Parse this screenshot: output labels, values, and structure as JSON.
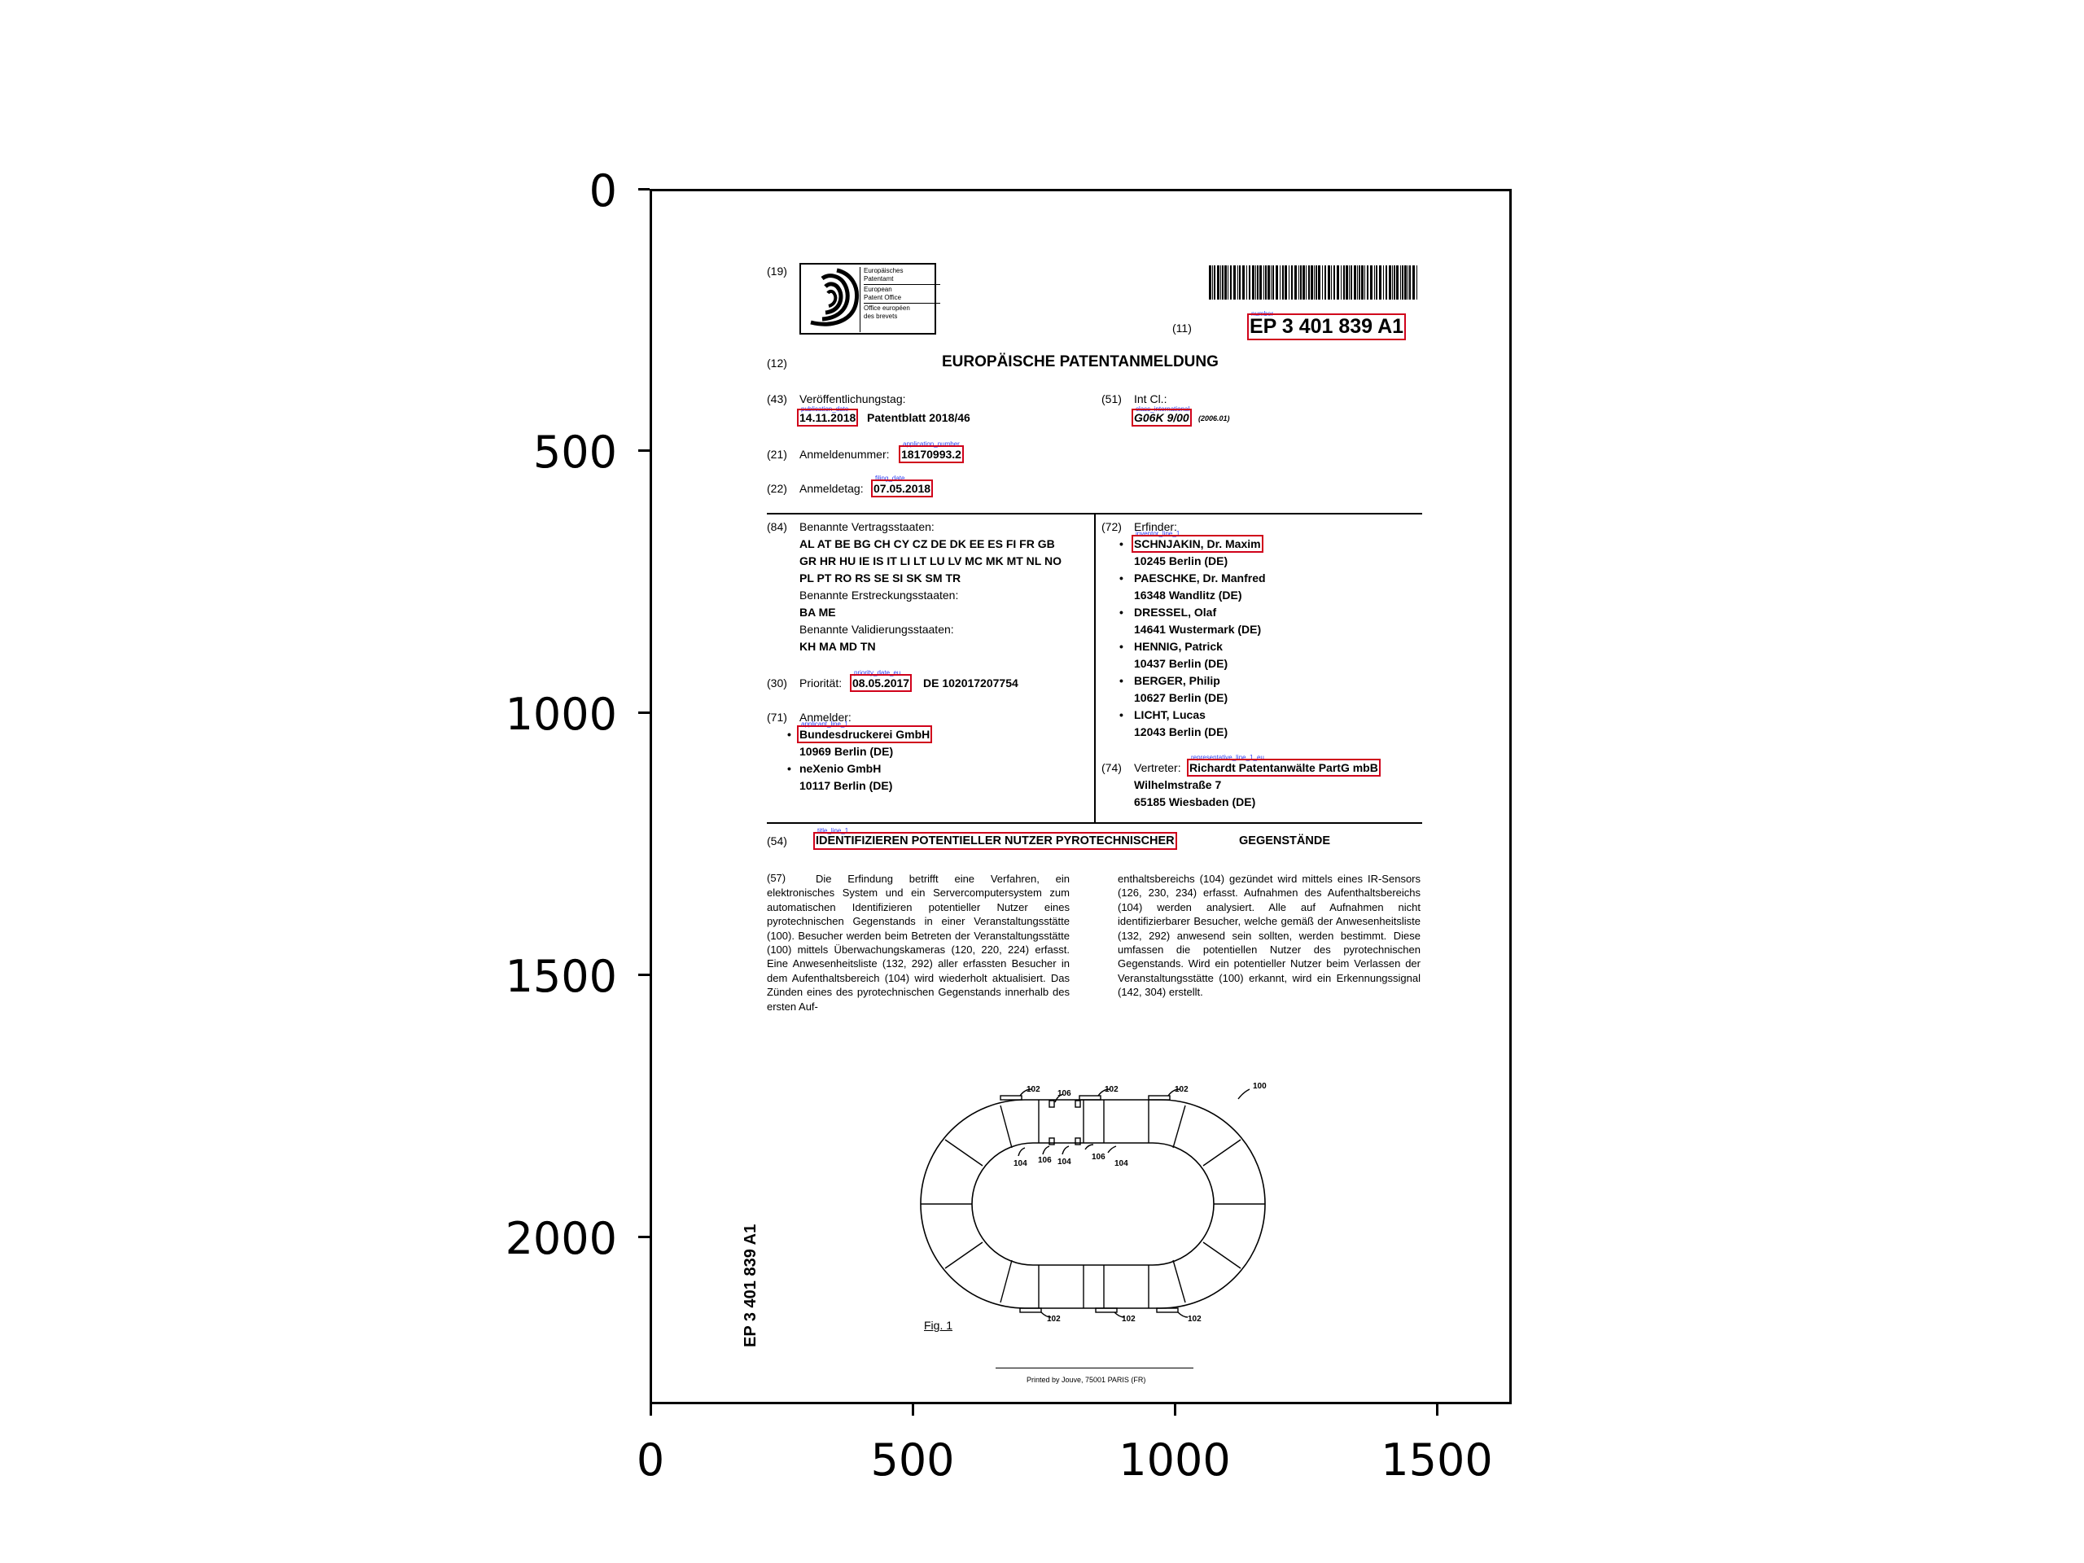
{
  "axes": {
    "y_ticks": [
      "0",
      "500",
      "1000",
      "1500",
      "2000"
    ],
    "x_ticks": [
      "0",
      "500",
      "1000",
      "1500"
    ]
  },
  "doc": {
    "code19": "(19)",
    "logo_lines": [
      "Europäisches",
      "Patentamt",
      "European",
      "Patent Office",
      "Office européen",
      "des brevets"
    ],
    "code11": "(11)",
    "number_tag": "number",
    "number": "EP 3 401 839 A1",
    "code12": "(12)",
    "doc_type": "EUROPÄISCHE PATENTANMELDUNG",
    "code43": "(43)",
    "pub_label": "Veröffentlichungstag:",
    "pub_tag": "publication_date",
    "pub_date": "14.11.2018",
    "patentblatt": "Patentblatt 2018/46",
    "code51": "(51)",
    "intcl_label": "Int Cl.:",
    "class_tag": "class_international",
    "class": "G06K 9/00",
    "class_year": "(2006.01)",
    "code21": "(21)",
    "appnum_label": "Anmeldenummer:",
    "appnum_tag": "application_number",
    "appnum": "18170993.2",
    "code22": "(22)",
    "filing_label": "Anmeldetag:",
    "filing_tag": "filing_date",
    "filing_date": "07.05.2018",
    "code84": "(84)",
    "states_label": "Benannte Vertragsstaaten:",
    "states_lines": [
      "AL AT BE BG CH CY CZ DE DK EE ES FI FR GB",
      "GR HR HU IE IS IT LI LT LU LV MC MK MT NL NO",
      "PL PT RO RS SE SI SK SM TR"
    ],
    "ext_label": "Benannte Erstreckungsstaaten:",
    "ext_states": "BA ME",
    "val_label": "Benannte Validierungsstaaten:",
    "val_states": "KH MA MD TN",
    "code30": "(30)",
    "priority_label": "Priorität:",
    "priority_tag": "priority_date_eu",
    "priority_date": "08.05.2017",
    "priority_rest": "DE 102017207754",
    "code71": "(71)",
    "applicant_label": "Anmelder:",
    "applicant_tag": "applicant_line_1",
    "applicants": [
      {
        "name": "Bundesdruckerei GmbH",
        "addr": "10969 Berlin (DE)"
      },
      {
        "name": "neXenio GmbH",
        "addr": "10117 Berlin (DE)"
      }
    ],
    "code72": "(72)",
    "inventor_label": "Erfinder:",
    "inventor_tag": "inventor_line_1",
    "inventors": [
      {
        "name": "SCHNJAKIN, Dr. Maxim",
        "addr": "10245 Berlin (DE)"
      },
      {
        "name": "PAESCHKE, Dr. Manfred",
        "addr": "16348 Wandlitz (DE)"
      },
      {
        "name": "DRESSEL, Olaf",
        "addr": "14641 Wustermark (DE)"
      },
      {
        "name": "HENNIG, Patrick",
        "addr": "10437 Berlin (DE)"
      },
      {
        "name": "BERGER, Philip",
        "addr": "10627 Berlin (DE)"
      },
      {
        "name": "LICHT, Lucas",
        "addr": "12043 Berlin (DE)"
      }
    ],
    "code74": "(74)",
    "rep_label": "Vertreter:",
    "rep_tag": "representative_line_1_eu",
    "rep_name": "Richardt Patentanwälte PartG mbB",
    "rep_street": "Wilhelmstraße 7",
    "rep_city": "65185 Wiesbaden (DE)",
    "code54": "(54)",
    "title_tag": "title_line_1",
    "title_main": "IDENTIFIZIEREN POTENTIELLER NUTZER PYROTECHNISCHER",
    "title_rest": "GEGENSTÄNDE",
    "code57": "(57)",
    "abstract_left": "Die Erfindung betrifft eine Verfahren, ein elektronisches System und ein Servercomputersystem zum automatischen Identifizieren potentieller Nutzer eines pyrotechnischen Gegenstands in einer Veranstaltungsstätte (100). Besucher werden beim Betreten der Veranstaltungsstätte (100) mittels Überwachungskameras (120, 220, 224) erfasst. Eine Anwesenheitsliste (132, 292) aller erfassten Besucher in dem Aufenthaltsbereich (104) wird wiederholt aktualisiert. Das Zünden eines des pyrotechnischen Gegenstands innerhalb des ersten Auf-",
    "abstract_right": "enthaltsbereichs (104) gezündet wird mittels eines IR-Sensors (126, 230, 234) erfasst. Aufnahmen des Aufenthaltsbereichs (104) werden analysiert. Alle auf Aufnahmen nicht identifizierbarer Besucher, welche gemäß der Anwesenheitsliste (132, 292) anwesend sein sollten, werden bestimmt. Diese umfassen die potentiellen Nutzer des pyrotechnischen Gegenstands. Wird ein potentieller Nutzer beim Verlassen der Veranstaltungsstätte (100) erkannt, wird ein Erkennungssignal (142, 304) erstellt.",
    "fig_labels": {
      "l102": "102",
      "l104": "104",
      "l106": "106",
      "l100": "100"
    },
    "fig_caption": "Fig. 1",
    "side_number": "EP 3 401 839 A1",
    "printer": "Printed by Jouve, 75001 PARIS (FR)"
  }
}
